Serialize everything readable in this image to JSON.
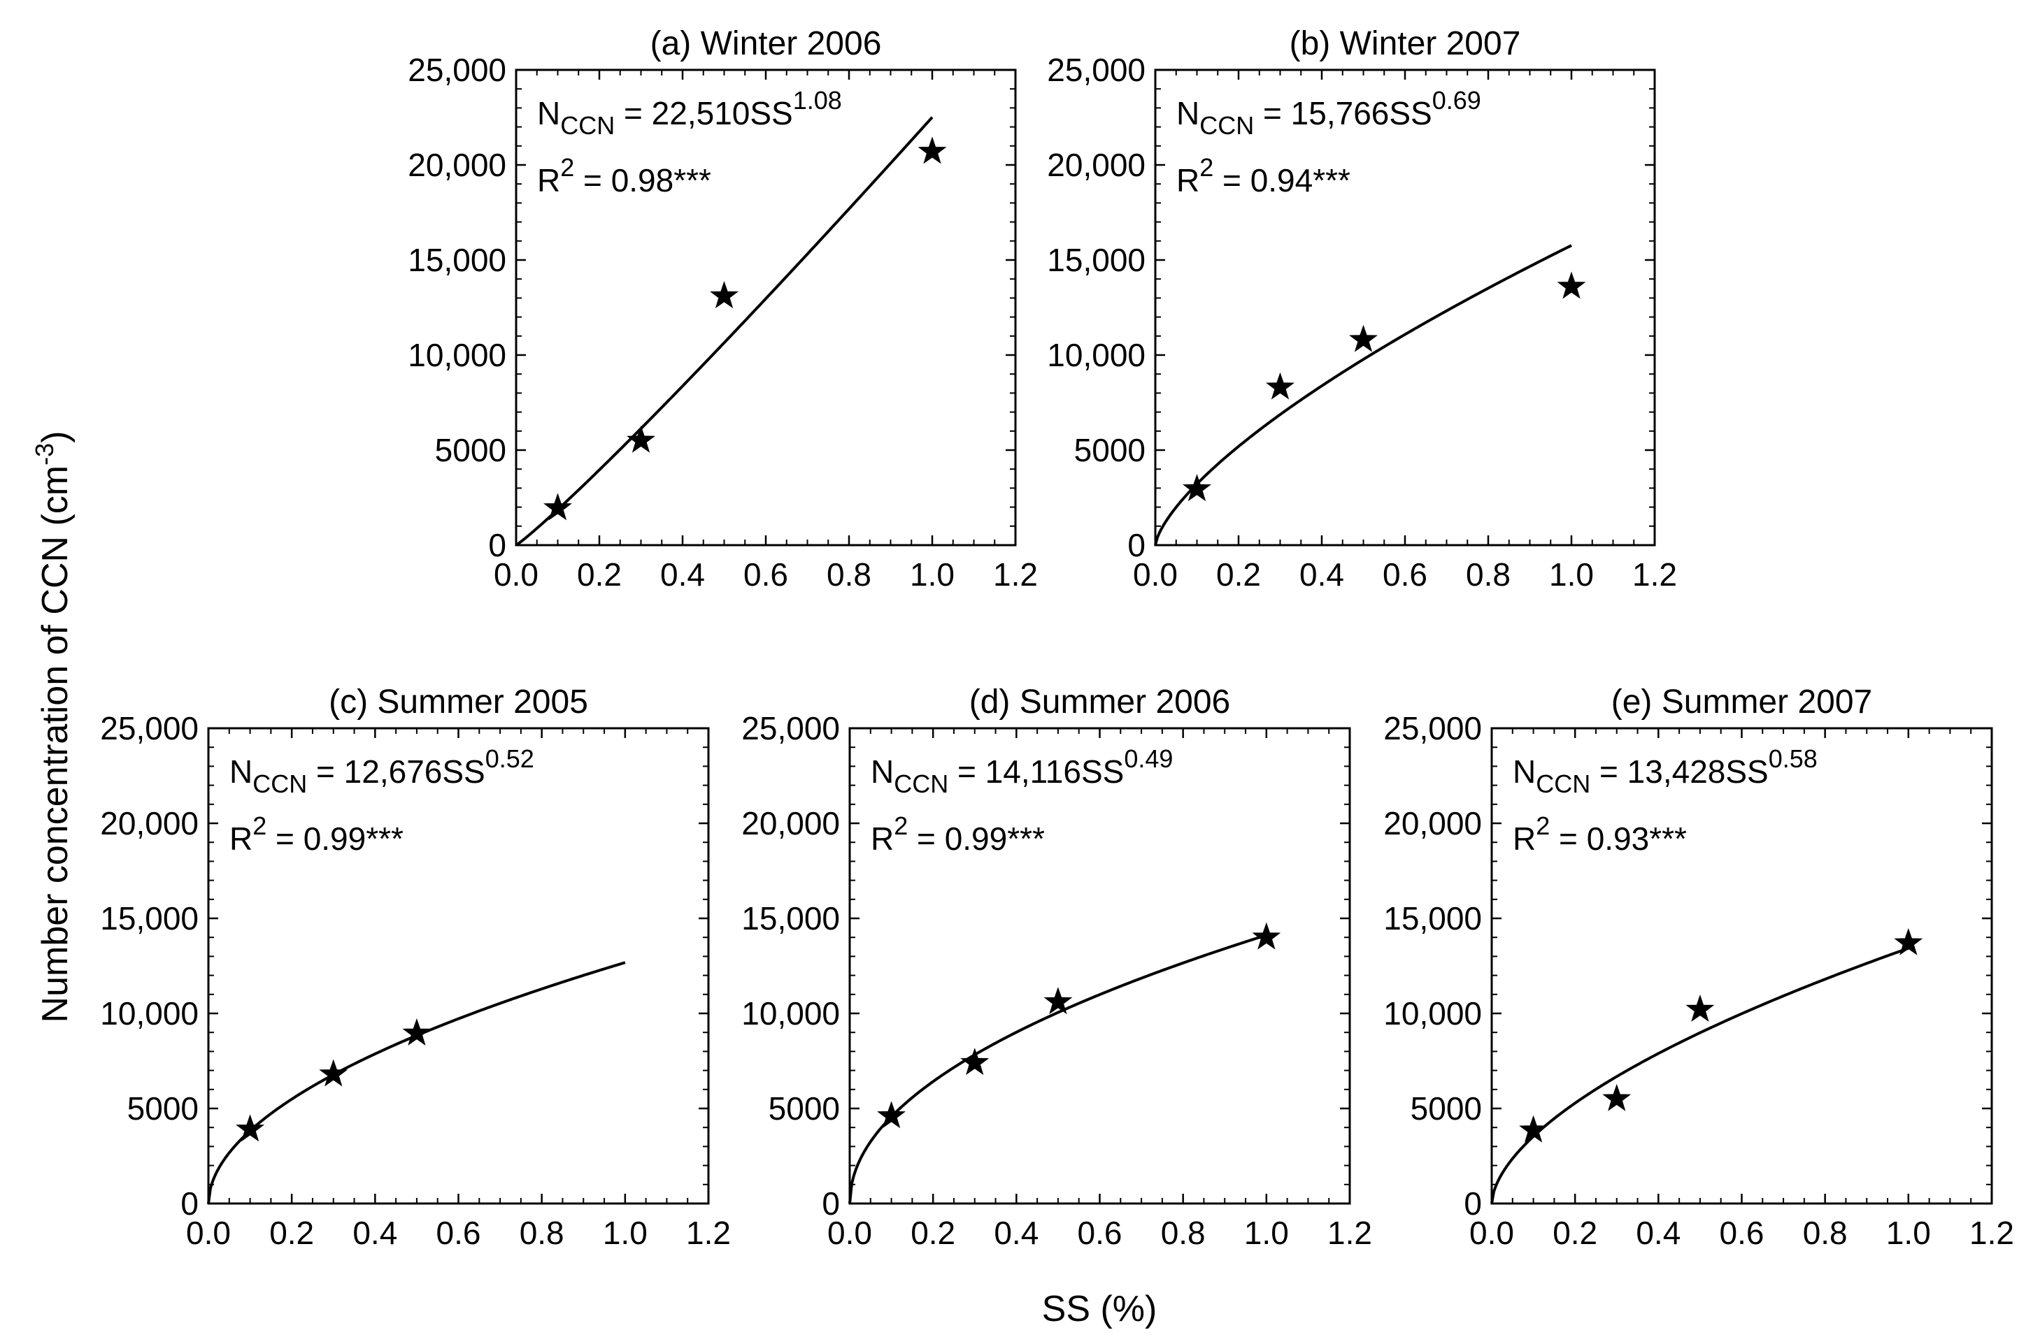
{
  "figure": {
    "ylabel": "Number concentration of CCN (cm",
    "ylabel_sup": "-3",
    "ylabel_close": ")",
    "xlabel": "SS (%)"
  },
  "chart_data": [
    {
      "type": "scatter",
      "title": "(a) Winter 2006",
      "fit": {
        "coefficient": 22510,
        "exponent": 1.08
      },
      "equation": {
        "lhs": "N",
        "sub": "CCN",
        "mid": " = 22,510SS",
        "sup": "1.08"
      },
      "r2": {
        "base": "R",
        "sup": "2",
        "rest": " = 0.98***"
      },
      "x": [
        0.1,
        0.3,
        0.5,
        1.0
      ],
      "y": [
        1950,
        5500,
        13100,
        20700
      ],
      "fit_x_max": 1.0,
      "xlim": [
        0,
        1.2
      ],
      "ylim": [
        0,
        25000
      ],
      "xticks": [
        "0.0",
        "0.2",
        "0.4",
        "0.6",
        "0.8",
        "1.0",
        "1.2"
      ],
      "yticks": [
        "0",
        "5000",
        "10,000",
        "15,000",
        "20,000",
        "25,000"
      ],
      "marker": "star"
    },
    {
      "type": "scatter",
      "title": "(b) Winter 2007",
      "fit": {
        "coefficient": 15766,
        "exponent": 0.69
      },
      "equation": {
        "lhs": "N",
        "sub": "CCN",
        "mid": " = 15,766SS",
        "sup": "0.69"
      },
      "r2": {
        "base": "R",
        "sup": "2",
        "rest": " = 0.94***"
      },
      "x": [
        0.1,
        0.3,
        0.5,
        1.0
      ],
      "y": [
        2950,
        8300,
        10800,
        13600
      ],
      "fit_x_max": 1.0,
      "xlim": [
        0,
        1.2
      ],
      "ylim": [
        0,
        25000
      ],
      "xticks": [
        "0.0",
        "0.2",
        "0.4",
        "0.6",
        "0.8",
        "1.0",
        "1.2"
      ],
      "yticks": [
        "0",
        "5000",
        "10,000",
        "15,000",
        "20,000",
        "25,000"
      ],
      "marker": "star"
    },
    {
      "type": "scatter",
      "title": "(c) Summer 2005",
      "fit": {
        "coefficient": 12676,
        "exponent": 0.52
      },
      "equation": {
        "lhs": "N",
        "sub": "CCN",
        "mid": " = 12,676SS",
        "sup": "0.52"
      },
      "r2": {
        "base": "R",
        "sup": "2",
        "rest": " = 0.99***"
      },
      "x": [
        0.1,
        0.3,
        0.5
      ],
      "y": [
        3900,
        6800,
        8950
      ],
      "fit_x_max": 1.0,
      "xlim": [
        0,
        1.2
      ],
      "ylim": [
        0,
        25000
      ],
      "xticks": [
        "0.0",
        "0.2",
        "0.4",
        "0.6",
        "0.8",
        "1.0",
        "1.2"
      ],
      "yticks": [
        "0",
        "5000",
        "10,000",
        "15,000",
        "20,000",
        "25,000"
      ],
      "marker": "star"
    },
    {
      "type": "scatter",
      "title": "(d) Summer 2006",
      "fit": {
        "coefficient": 14116,
        "exponent": 0.49
      },
      "equation": {
        "lhs": "N",
        "sub": "CCN",
        "mid": " = 14,116SS",
        "sup": "0.49"
      },
      "r2": {
        "base": "R",
        "sup": "2",
        "rest": " = 0.99***"
      },
      "x": [
        0.1,
        0.3,
        0.5,
        1.0
      ],
      "y": [
        4600,
        7400,
        10600,
        14000
      ],
      "fit_x_max": 1.0,
      "xlim": [
        0,
        1.2
      ],
      "ylim": [
        0,
        25000
      ],
      "xticks": [
        "0.0",
        "0.2",
        "0.4",
        "0.6",
        "0.8",
        "1.0",
        "1.2"
      ],
      "yticks": [
        "0",
        "5000",
        "10,000",
        "15,000",
        "20,000",
        "25,000"
      ],
      "marker": "star"
    },
    {
      "type": "scatter",
      "title": "(e) Summer 2007",
      "fit": {
        "coefficient": 13428,
        "exponent": 0.58
      },
      "equation": {
        "lhs": "N",
        "sub": "CCN",
        "mid": " = 13,428SS",
        "sup": "0.58"
      },
      "r2": {
        "base": "R",
        "sup": "2",
        "rest": " = 0.93***"
      },
      "x": [
        0.1,
        0.3,
        0.5,
        1.0
      ],
      "y": [
        3850,
        5500,
        10200,
        13700
      ],
      "fit_x_max": 1.0,
      "xlim": [
        0,
        1.2
      ],
      "ylim": [
        0,
        25000
      ],
      "xticks": [
        "0.0",
        "0.2",
        "0.4",
        "0.6",
        "0.8",
        "1.0",
        "1.2"
      ],
      "yticks": [
        "0",
        "5000",
        "10,000",
        "15,000",
        "20,000",
        "25,000"
      ],
      "marker": "star"
    }
  ]
}
